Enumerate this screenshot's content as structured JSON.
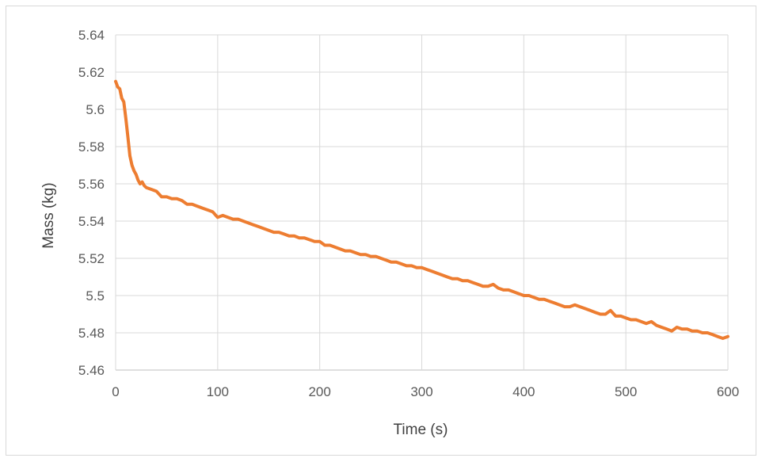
{
  "chart_data": {
    "type": "line",
    "title": "",
    "xlabel": "Time (s)",
    "ylabel": "Mass  (kg)",
    "xlim": [
      0,
      600
    ],
    "ylim": [
      5.46,
      5.64
    ],
    "x_ticks": [
      "0",
      "100",
      "200",
      "300",
      "400",
      "500",
      "600"
    ],
    "y_ticks": [
      "5.46",
      "5.48",
      "5.5",
      "5.52",
      "5.54",
      "5.56",
      "5.58",
      "5.6",
      "5.62",
      "5.64"
    ],
    "grid": true,
    "legend": "none",
    "colors": {
      "line": "#ed7d31",
      "grid": "#d9d9d9",
      "axis": "#bfbfbf",
      "text": "#595959"
    },
    "series": [
      {
        "x": [
          0,
          2,
          4,
          6,
          8,
          10,
          12,
          14,
          16,
          18,
          20,
          22,
          24,
          26,
          28,
          30,
          35,
          40,
          45,
          50,
          55,
          60,
          65,
          70,
          75,
          80,
          85,
          90,
          95,
          100,
          105,
          110,
          115,
          120,
          125,
          130,
          135,
          140,
          145,
          150,
          155,
          160,
          165,
          170,
          175,
          180,
          185,
          190,
          195,
          200,
          205,
          210,
          215,
          220,
          225,
          230,
          235,
          240,
          245,
          250,
          255,
          260,
          265,
          270,
          275,
          280,
          285,
          290,
          295,
          300,
          305,
          310,
          315,
          320,
          325,
          330,
          335,
          340,
          345,
          350,
          355,
          360,
          365,
          370,
          375,
          380,
          385,
          390,
          395,
          400,
          405,
          410,
          415,
          420,
          425,
          430,
          435,
          440,
          445,
          450,
          455,
          460,
          465,
          470,
          475,
          480,
          485,
          490,
          495,
          500,
          505,
          510,
          515,
          520,
          525,
          530,
          535,
          540,
          545,
          550,
          555,
          560,
          565,
          570,
          575,
          580,
          585,
          590,
          595,
          600
        ],
        "values": [
          5.615,
          5.612,
          5.611,
          5.606,
          5.604,
          5.595,
          5.585,
          5.575,
          5.57,
          5.567,
          5.565,
          5.562,
          5.56,
          5.561,
          5.559,
          5.558,
          5.557,
          5.556,
          5.553,
          5.553,
          5.552,
          5.552,
          5.551,
          5.549,
          5.549,
          5.548,
          5.547,
          5.546,
          5.545,
          5.542,
          5.543,
          5.542,
          5.541,
          5.541,
          5.54,
          5.539,
          5.538,
          5.537,
          5.536,
          5.535,
          5.534,
          5.534,
          5.533,
          5.532,
          5.532,
          5.531,
          5.531,
          5.53,
          5.529,
          5.529,
          5.527,
          5.527,
          5.526,
          5.525,
          5.524,
          5.524,
          5.523,
          5.522,
          5.522,
          5.521,
          5.521,
          5.52,
          5.519,
          5.518,
          5.518,
          5.517,
          5.516,
          5.516,
          5.515,
          5.515,
          5.514,
          5.513,
          5.512,
          5.511,
          5.51,
          5.509,
          5.509,
          5.508,
          5.508,
          5.507,
          5.506,
          5.505,
          5.505,
          5.506,
          5.504,
          5.503,
          5.503,
          5.502,
          5.501,
          5.5,
          5.5,
          5.499,
          5.498,
          5.498,
          5.497,
          5.496,
          5.495,
          5.494,
          5.494,
          5.495,
          5.494,
          5.493,
          5.492,
          5.491,
          5.49,
          5.49,
          5.492,
          5.489,
          5.489,
          5.488,
          5.487,
          5.487,
          5.486,
          5.485,
          5.486,
          5.484,
          5.483,
          5.482,
          5.481,
          5.483,
          5.482,
          5.482,
          5.481,
          5.481,
          5.48,
          5.48,
          5.479,
          5.478,
          5.477,
          5.478
        ]
      }
    ]
  }
}
